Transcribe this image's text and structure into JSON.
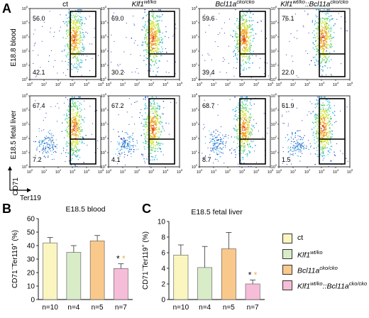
{
  "panel_letters": [
    "A",
    "B",
    "C"
  ],
  "flow": {
    "row_labels": [
      "E18.8 blood",
      "E18.5 fetal liver"
    ],
    "columns": [
      {
        "base": "ct",
        "sup": "",
        "mid": "",
        "sup2": ""
      },
      {
        "base": "Klf1",
        "sup": "wt/ko",
        "mid": "",
        "sup2": ""
      },
      {
        "base": "Bcl11a",
        "sup": "cko/cko",
        "mid": "",
        "sup2": ""
      },
      {
        "base": "Klf1",
        "sup": "wt/ko",
        "mid": "::Bcl11a",
        "sup2": "cko/cko"
      }
    ],
    "x_tick_exponents": [
      "0",
      "1",
      "2",
      "3",
      "4",
      "5"
    ],
    "y_tick_exponents": [
      "5",
      "4",
      "3",
      "2",
      "1",
      "0"
    ],
    "x_axis_label": "Ter119",
    "y_axis_label": "CD71",
    "plots": [
      {
        "row": 0,
        "col": 0,
        "top": "56.0",
        "bottom": "42.1"
      },
      {
        "row": 0,
        "col": 1,
        "top": "69.0",
        "bottom": "30.2"
      },
      {
        "row": 0,
        "col": 2,
        "top": "59.6",
        "bottom": "39.4"
      },
      {
        "row": 0,
        "col": 3,
        "top": "76.1",
        "bottom": "22.0"
      },
      {
        "row": 1,
        "col": 0,
        "top": "67.4",
        "bottom": "7.2"
      },
      {
        "row": 1,
        "col": 1,
        "top": "67.2",
        "bottom": "4.1"
      },
      {
        "row": 1,
        "col": 2,
        "top": "68.7",
        "bottom": "8.7"
      },
      {
        "row": 1,
        "col": 3,
        "top": "61.9",
        "bottom": "1.5"
      }
    ]
  },
  "chart_data": [
    {
      "type": "bar",
      "title": "E18.5 blood",
      "ylabel": "CD71-Ter119+ (%)",
      "ylim": [
        0,
        60
      ],
      "yticks": [
        "0",
        "10",
        "20",
        "30",
        "40",
        "50",
        "60"
      ],
      "categories": [
        "ct",
        "Klf1 wt/ko",
        "Bcl11a cko/cko",
        "Klf1 wt/ko::Bcl11a cko/cko"
      ],
      "values": [
        42,
        35,
        43.5,
        23
      ],
      "errors": [
        4,
        5,
        4,
        3.5
      ],
      "n_labels": [
        "n=10",
        "n=4",
        "n=5",
        "n=7"
      ],
      "significance": {
        "bar": 3,
        "marks": [
          "*",
          "*"
        ]
      }
    },
    {
      "type": "bar",
      "title": "E18.5 fetal liver",
      "ylabel": "CD71-Ter119+ (%)",
      "ylim": [
        0,
        10
      ],
      "yticks": [
        "0",
        "2",
        "4",
        "6",
        "8",
        "10"
      ],
      "categories": [
        "ct",
        "Klf1 wt/ko",
        "Bcl11a cko/cko",
        "Klf1 wt/ko::Bcl11a cko/cko"
      ],
      "values": [
        5.7,
        4.1,
        6.5,
        2.0
      ],
      "errors": [
        1.3,
        2.7,
        2.1,
        0.5
      ],
      "n_labels": [
        "n=10",
        "n=4",
        "n=5",
        "n=7"
      ],
      "significance": {
        "bar": 3,
        "marks": [
          "*",
          "*"
        ]
      }
    }
  ],
  "bar_colors": [
    "#fbf6c0",
    "#d9ecc8",
    "#f9c98c",
    "#f6bdd8"
  ],
  "star_colors": [
    "#000000",
    "#f0b040"
  ],
  "legend": [
    {
      "base": "ct",
      "sup": "",
      "mid": "",
      "sup2": ""
    },
    {
      "base": "Klf1",
      "sup": "wt/ko",
      "mid": "",
      "sup2": ""
    },
    {
      "base": "Bcl11a",
      "sup": "cko/cko",
      "mid": "",
      "sup2": ""
    },
    {
      "base": "Klf1",
      "sup": "wt/ko",
      "mid": "::Bcl11a",
      "sup2": "cko/cko"
    }
  ]
}
